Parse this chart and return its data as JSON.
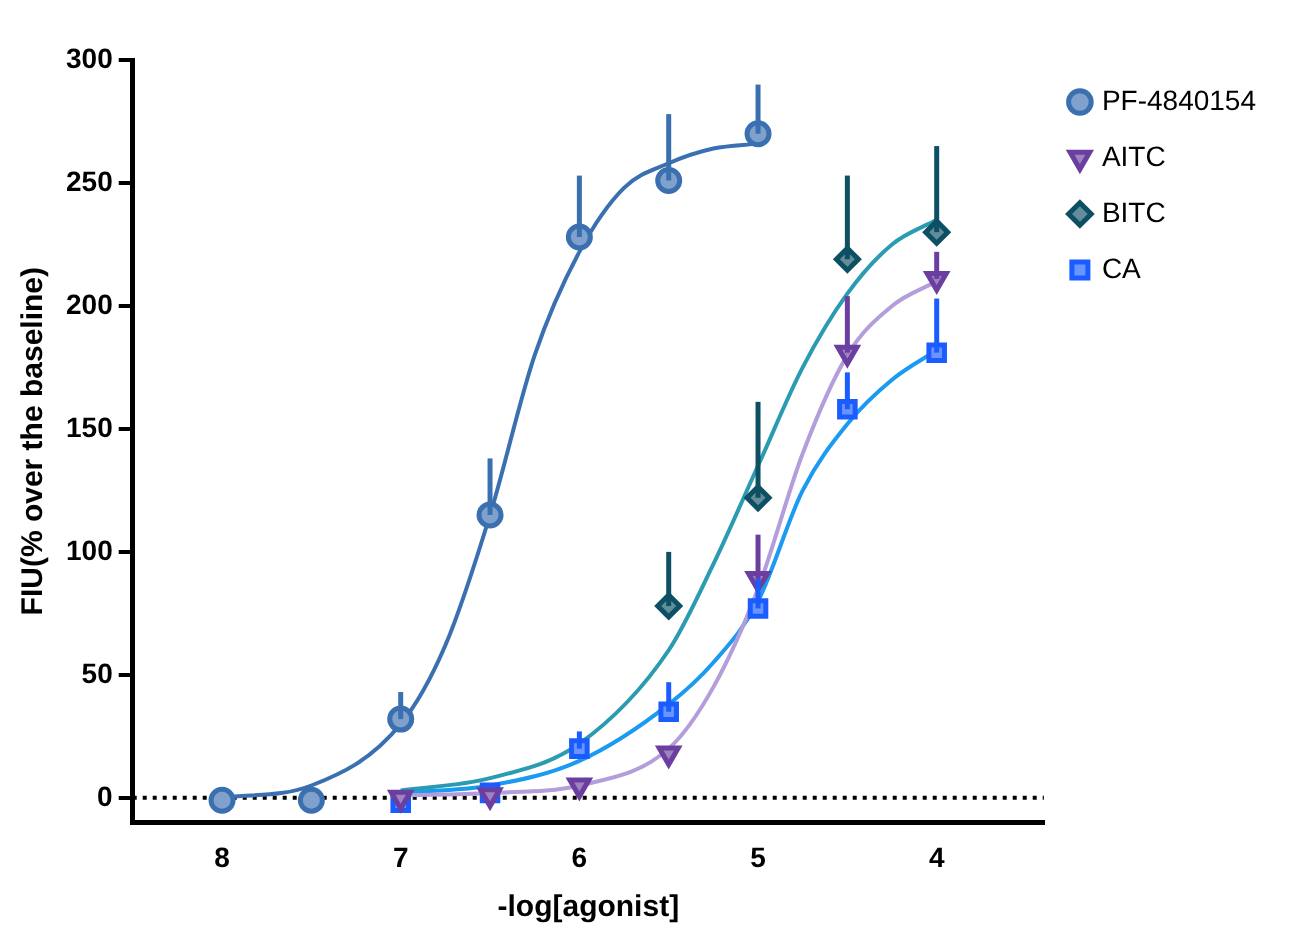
{
  "chart_data": {
    "type": "scatter",
    "xlabel": "-log[agonist]",
    "ylabel": "FIU(% over the baseline)",
    "xlim": [
      8.5,
      3.4
    ],
    "xticks": [
      8,
      7,
      6,
      5,
      4
    ],
    "ylim": [
      -10,
      300
    ],
    "yticks": [
      0,
      50,
      100,
      150,
      200,
      250,
      300
    ],
    "grid": false,
    "legend": "top right",
    "ref_lines": [
      {
        "axis": "y",
        "value": 0,
        "color": "#000000",
        "line_style": "dotted"
      }
    ],
    "series": [
      {
        "name": "PF-4840154",
        "marker": "circle",
        "color": "#3a6fb0",
        "x": [
          8,
          7.5,
          7,
          6.5,
          6,
          5.5,
          5
        ],
        "values": [
          -1,
          -1,
          32,
          115,
          228,
          251,
          270
        ],
        "errors": [
          null,
          null,
          [
            32,
            43
          ],
          [
            115,
            138
          ],
          [
            228,
            253
          ],
          [
            251,
            278
          ],
          [
            270,
            290
          ]
        ]
      },
      {
        "name": "AITC",
        "marker": "triangle",
        "color": "#6a3fa0",
        "x": [
          7,
          6.5,
          6,
          5.5,
          5,
          4.5,
          4
        ],
        "values": [
          0,
          1,
          5,
          18,
          89,
          181,
          211
        ],
        "errors": [
          null,
          null,
          null,
          null,
          [
            89,
            107
          ],
          [
            181,
            204
          ],
          [
            211,
            222
          ]
        ]
      },
      {
        "name": "BITC",
        "marker": "diamond",
        "color": "#0d4f63",
        "x": [
          5.5,
          5,
          4.5,
          4
        ],
        "values": [
          78,
          122,
          219,
          230
        ],
        "errors": [
          [
            78,
            100
          ],
          [
            122,
            161
          ],
          [
            219,
            253
          ],
          [
            230,
            265
          ]
        ]
      },
      {
        "name": "CA",
        "marker": "square",
        "color": "#1a5cff",
        "x": [
          7,
          6.5,
          6,
          5.5,
          5,
          4.5,
          4
        ],
        "values": [
          -2,
          2,
          20,
          35,
          77,
          158,
          181
        ],
        "errors": [
          null,
          null,
          [
            20,
            27
          ],
          [
            35,
            47
          ],
          [
            77,
            89
          ],
          [
            158,
            173
          ],
          [
            181,
            203
          ]
        ]
      },
      {
        "type": "line",
        "marker": "none",
        "color": "#3a6fb0",
        "x": [
          8,
          7.5,
          7,
          6.75,
          6.5,
          6.25,
          6,
          5.75,
          5.5,
          5.25,
          5
        ],
        "values": [
          0,
          5,
          30,
          62,
          115,
          180,
          222,
          248,
          258,
          264,
          266
        ]
      },
      {
        "type": "line",
        "marker": "none",
        "color": "#b39ddb",
        "x": [
          7,
          6.5,
          6,
          5.5,
          5.25,
          5,
          4.75,
          4.5,
          4.25,
          4
        ],
        "values": [
          1,
          2,
          5,
          20,
          45,
          85,
          140,
          180,
          200,
          210
        ]
      },
      {
        "type": "line",
        "marker": "none",
        "color": "#2a9bb0",
        "x": [
          7,
          6.5,
          6,
          5.5,
          5.25,
          5,
          4.75,
          4.5,
          4.25,
          4
        ],
        "values": [
          3,
          8,
          22,
          60,
          95,
          135,
          175,
          205,
          225,
          235
        ]
      },
      {
        "type": "line",
        "marker": "none",
        "color": "#1a9af0",
        "x": [
          7,
          6.5,
          6,
          5.5,
          5.25,
          5,
          4.75,
          4.5,
          4.25,
          4
        ],
        "values": [
          2,
          5,
          15,
          38,
          55,
          80,
          125,
          152,
          170,
          182
        ]
      }
    ]
  }
}
